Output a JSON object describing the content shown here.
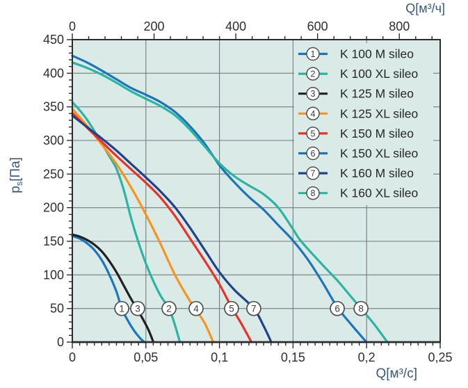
{
  "chart_data": {
    "type": "line",
    "title": "",
    "colors": {
      "plot_bg": "#d9eae7",
      "grid": "#747b7d",
      "border": "#2b2b2b",
      "tick_text": "#2e2e2e",
      "unit_label": "#35597a",
      "legend_text": "#272727",
      "marker_stroke": "#4d4f52",
      "marker_number": "#3c3c3c"
    },
    "x_bottom": {
      "label": "Q[м³/с]",
      "min": 0,
      "max": 0.25,
      "major_ticks": [
        0,
        0.05,
        0.1,
        0.15,
        0.2,
        0.25
      ],
      "tick_labels": [
        "0",
        "0,05",
        "0,1",
        "0,15",
        "0,2",
        "0,25"
      ],
      "minor_step": 0.005
    },
    "x_top": {
      "label": "Q[м³/ч]",
      "min": 0,
      "max": 900,
      "major_ticks": [
        0,
        200,
        400,
        600,
        800
      ],
      "tick_labels": [
        "0",
        "200",
        "400",
        "600",
        "800"
      ],
      "minor_step": 40
    },
    "y_left": {
      "label_base": "p",
      "label_sub": "s",
      "label_unit": "[Па]",
      "min": 0,
      "max": 450,
      "major_step": 50,
      "minor_step": 10,
      "tick_labels": [
        "0",
        "50",
        "100",
        "150",
        "200",
        "250",
        "300",
        "350",
        "400",
        "450"
      ]
    },
    "grid": "on",
    "marker_pressure": 50,
    "legend": {
      "position": "top-right"
    },
    "series": [
      {
        "id": "1",
        "name": "K 100 M sileo",
        "color": "#1b75bc",
        "marker_q": 0.0336,
        "points": [
          [
            0,
            158
          ],
          [
            0.005,
            154
          ],
          [
            0.01,
            147
          ],
          [
            0.015,
            137
          ],
          [
            0.02,
            122
          ],
          [
            0.025,
            101
          ],
          [
            0.03,
            75
          ],
          [
            0.0336,
            50
          ],
          [
            0.038,
            31
          ],
          [
            0.042,
            17
          ],
          [
            0.046,
            6
          ],
          [
            0.049,
            0
          ]
        ]
      },
      {
        "id": "2",
        "name": "K 100 XL sileo",
        "color": "#2cb4a3",
        "marker_q": 0.0657,
        "points": [
          [
            0,
            357
          ],
          [
            0.005,
            345
          ],
          [
            0.01,
            331
          ],
          [
            0.015,
            314
          ],
          [
            0.02,
            296
          ],
          [
            0.025,
            277
          ],
          [
            0.03,
            258
          ],
          [
            0.035,
            226
          ],
          [
            0.04,
            184
          ],
          [
            0.045,
            148
          ],
          [
            0.05,
            117
          ],
          [
            0.055,
            91
          ],
          [
            0.06,
            69
          ],
          [
            0.0657,
            50
          ],
          [
            0.0695,
            27
          ],
          [
            0.0731,
            0
          ]
        ]
      },
      {
        "id": "3",
        "name": "K 125 M sileo",
        "color": "#231f20",
        "marker_q": 0.0444,
        "points": [
          [
            0,
            160
          ],
          [
            0.005,
            157
          ],
          [
            0.01,
            152
          ],
          [
            0.015,
            145
          ],
          [
            0.02,
            135
          ],
          [
            0.025,
            121
          ],
          [
            0.03,
            104
          ],
          [
            0.035,
            84
          ],
          [
            0.04,
            64
          ],
          [
            0.0444,
            48
          ],
          [
            0.049,
            30
          ],
          [
            0.052,
            17
          ],
          [
            0.0551,
            0
          ]
        ]
      },
      {
        "id": "4",
        "name": "K 125 XL sileo",
        "color": "#f7941d",
        "marker_q": 0.0841,
        "points": [
          [
            0,
            347
          ],
          [
            0.01,
            322
          ],
          [
            0.02,
            294
          ],
          [
            0.03,
            265
          ],
          [
            0.04,
            230
          ],
          [
            0.05,
            190
          ],
          [
            0.06,
            146
          ],
          [
            0.07,
            99
          ],
          [
            0.08,
            61
          ],
          [
            0.0841,
            48
          ],
          [
            0.09,
            28
          ],
          [
            0.0958,
            0
          ]
        ]
      },
      {
        "id": "5",
        "name": "K 150 M sileo",
        "color": "#e93128",
        "marker_q": 0.1082,
        "points": [
          [
            0,
            341
          ],
          [
            0.01,
            319
          ],
          [
            0.02,
            298
          ],
          [
            0.03,
            277
          ],
          [
            0.04,
            257
          ],
          [
            0.05,
            237
          ],
          [
            0.06,
            215
          ],
          [
            0.07,
            187
          ],
          [
            0.08,
            154
          ],
          [
            0.09,
            121
          ],
          [
            0.1,
            86
          ],
          [
            0.1082,
            52
          ],
          [
            0.115,
            27
          ],
          [
            0.1217,
            0
          ]
        ]
      },
      {
        "id": "6",
        "name": "K 150 XL sileo",
        "color": "#1b75bc",
        "marker_q": 0.1801,
        "points": [
          [
            0,
            426
          ],
          [
            0.01,
            416
          ],
          [
            0.02,
            404
          ],
          [
            0.03,
            391
          ],
          [
            0.04,
            378
          ],
          [
            0.05,
            368
          ],
          [
            0.06,
            357
          ],
          [
            0.07,
            342
          ],
          [
            0.08,
            321
          ],
          [
            0.09,
            295
          ],
          [
            0.1,
            263
          ],
          [
            0.11,
            238
          ],
          [
            0.12,
            216
          ],
          [
            0.13,
            197
          ],
          [
            0.14,
            174
          ],
          [
            0.15,
            151
          ],
          [
            0.16,
            123
          ],
          [
            0.17,
            89
          ],
          [
            0.1801,
            52
          ],
          [
            0.19,
            25
          ],
          [
            0.1999,
            0
          ]
        ]
      },
      {
        "id": "7",
        "name": "K 160 M sileo",
        "color": "#21418d",
        "marker_q": 0.1233,
        "points": [
          [
            0,
            337
          ],
          [
            0.01,
            320
          ],
          [
            0.02,
            303
          ],
          [
            0.03,
            285
          ],
          [
            0.04,
            265
          ],
          [
            0.05,
            245
          ],
          [
            0.06,
            224
          ],
          [
            0.07,
            200
          ],
          [
            0.08,
            170
          ],
          [
            0.09,
            137
          ],
          [
            0.1,
            104
          ],
          [
            0.11,
            78
          ],
          [
            0.1233,
            50
          ],
          [
            0.13,
            24
          ],
          [
            0.1352,
            0
          ]
        ]
      },
      {
        "id": "8",
        "name": "K 160 XL sileo",
        "color": "#2cb4a3",
        "marker_q": 0.1962,
        "points": [
          [
            0,
            416
          ],
          [
            0.01,
            408
          ],
          [
            0.02,
            398
          ],
          [
            0.03,
            386
          ],
          [
            0.04,
            373
          ],
          [
            0.05,
            362
          ],
          [
            0.06,
            351
          ],
          [
            0.07,
            337
          ],
          [
            0.08,
            316
          ],
          [
            0.09,
            291
          ],
          [
            0.1,
            266
          ],
          [
            0.11,
            247
          ],
          [
            0.12,
            233
          ],
          [
            0.13,
            220
          ],
          [
            0.14,
            200
          ],
          [
            0.15,
            168
          ],
          [
            0.1555,
            150
          ],
          [
            0.17,
            115
          ],
          [
            0.18,
            92
          ],
          [
            0.19,
            66
          ],
          [
            0.1962,
            50
          ],
          [
            0.205,
            27
          ],
          [
            0.2141,
            0
          ]
        ]
      }
    ]
  }
}
